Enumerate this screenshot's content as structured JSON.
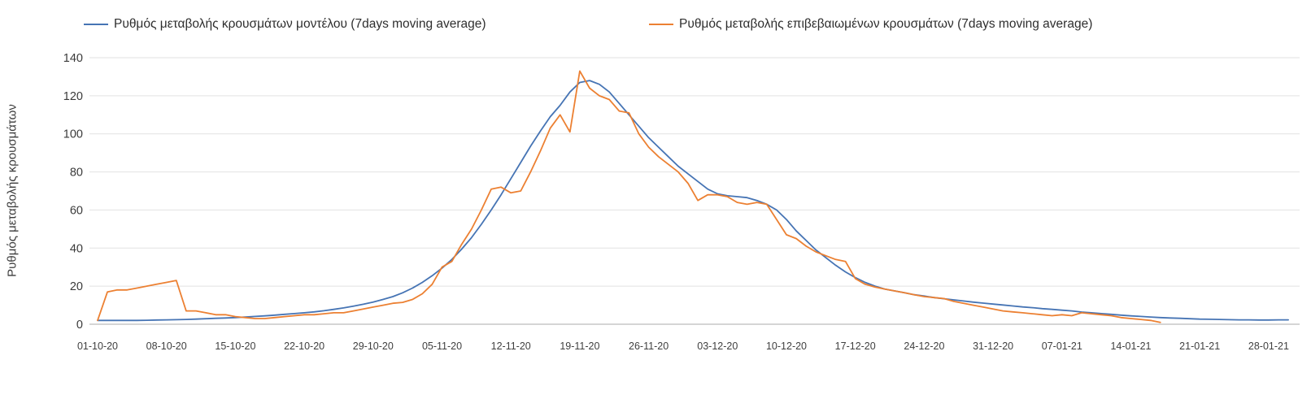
{
  "chart_data": {
    "type": "line",
    "title": "",
    "xlabel": "",
    "ylabel": "Ρυθμός μεταβολής κρουσμάτων",
    "ylim": [
      0,
      140
    ],
    "y_ticks": [
      0,
      20,
      40,
      60,
      80,
      100,
      120,
      140
    ],
    "grid": true,
    "legend_position": "top",
    "x_unit": "one data point per day, day 0 = 01-10-20",
    "x_tick_interval_days": 7,
    "x_tick_labels": [
      "01-10-20",
      "08-10-20",
      "15-10-20",
      "22-10-20",
      "29-10-20",
      "05-11-20",
      "12-11-20",
      "19-11-20",
      "26-11-20",
      "03-12-20",
      "10-12-20",
      "17-12-20",
      "24-12-20",
      "31-12-20",
      "07-01-21",
      "14-01-21",
      "21-01-21",
      "28-01-21"
    ],
    "series": [
      {
        "name": "Ρυθμός μεταβολής κρουσμάτων μοντέλου (7days moving average)",
        "color": "#4674b4",
        "start_day_index": 0,
        "values": [
          2,
          2,
          2,
          2,
          2,
          2.1,
          2.2,
          2.3,
          2.4,
          2.5,
          2.7,
          2.9,
          3.1,
          3.3,
          3.5,
          3.8,
          4.1,
          4.4,
          4.8,
          5.2,
          5.6,
          6,
          6.5,
          7.1,
          7.8,
          8.6,
          9.5,
          10.5,
          11.6,
          13,
          14.5,
          16.5,
          19,
          22,
          25.5,
          29.5,
          34,
          39.5,
          45.5,
          52.5,
          60,
          68,
          76.5,
          85,
          93.5,
          101.5,
          109,
          115,
          122,
          127,
          128,
          126,
          122,
          116,
          110,
          104,
          98,
          93,
          88,
          83,
          79,
          75,
          71,
          68.5,
          67.5,
          67,
          66.5,
          65,
          63,
          60,
          55,
          49,
          44,
          39,
          35,
          31,
          27.5,
          24.5,
          22,
          20,
          18.5,
          17.5,
          16.5,
          15.5,
          14.8,
          14,
          13.4,
          12.8,
          12.2,
          11.6,
          11.1,
          10.6,
          10.1,
          9.6,
          9.1,
          8.7,
          8.2,
          7.8,
          7.4,
          7,
          6.4,
          6,
          5.6,
          5.2,
          4.8,
          4.4,
          4.1,
          3.8,
          3.5,
          3.3,
          3.1,
          2.9,
          2.7,
          2.6,
          2.5,
          2.4,
          2.3,
          2.3,
          2.2,
          2.2,
          2.3,
          2.3
        ]
      },
      {
        "name": "Ρυθμός μεταβολής επιβεβαιωμένων κρουσμάτων (7days moving average)",
        "color": "#ec8032",
        "start_day_index": 0,
        "values": [
          2,
          17,
          18,
          18,
          19,
          20,
          21,
          22,
          23,
          7,
          7,
          6,
          5,
          5,
          4,
          3.5,
          3,
          3,
          3.5,
          4,
          4.5,
          5,
          5,
          5.5,
          6,
          6,
          7,
          8,
          9,
          10,
          11,
          11.5,
          13,
          16,
          21,
          30,
          33,
          42,
          50,
          60,
          71,
          72,
          69,
          70,
          80,
          91,
          103,
          110,
          101,
          133,
          124,
          120,
          118,
          112,
          111,
          100,
          93,
          88,
          84,
          80,
          74,
          65,
          68,
          68,
          67,
          64,
          63,
          64,
          63,
          55,
          47,
          45,
          41,
          38,
          36,
          34,
          33,
          24,
          21,
          19.5,
          18.5,
          17.5,
          16.5,
          15.5,
          14.5,
          14,
          13.5,
          12,
          11,
          10,
          9,
          8,
          7,
          6.5,
          6,
          5.5,
          5,
          4.5,
          5,
          4.5,
          6,
          5.5,
          5,
          4.5,
          3.5,
          3,
          2.5,
          2,
          1
        ]
      }
    ]
  }
}
